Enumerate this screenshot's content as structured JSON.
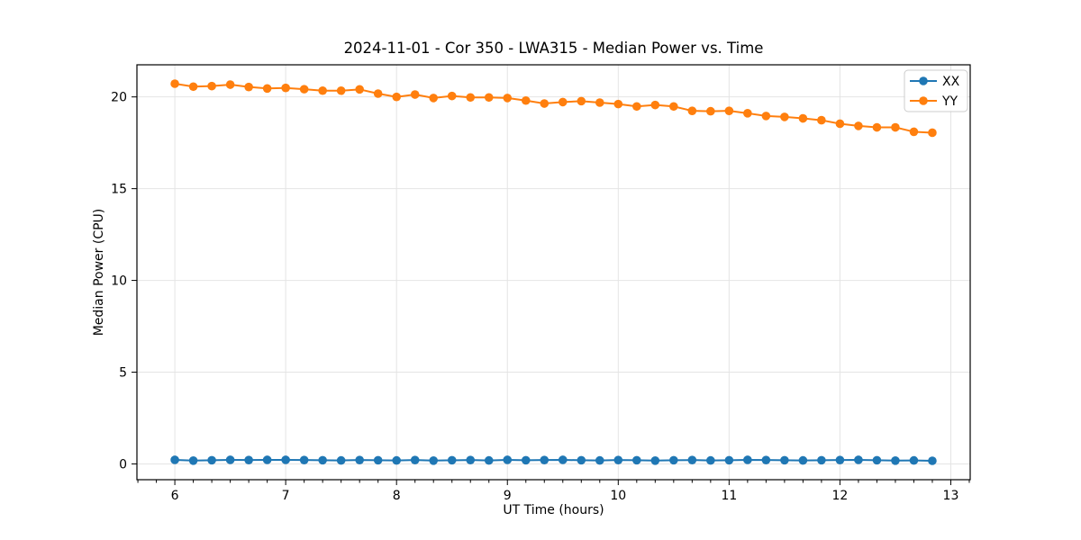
{
  "figure": {
    "background": "#ffffff",
    "frame_color": "#000000",
    "tick_color": "#000000"
  },
  "chart_data": {
    "type": "line",
    "title": "2024-11-01 - Cor 350 - LWA315 - Median Power vs. Time",
    "xlabel": "UT Time (hours)",
    "ylabel": "Median Power (CPU)",
    "xlim": [
      5.658,
      13.175
    ],
    "ylim": [
      -0.86,
      21.75
    ],
    "xticks": [
      6,
      7,
      8,
      9,
      10,
      11,
      12,
      13
    ],
    "yticks": [
      0,
      5,
      10,
      15,
      20
    ],
    "x_minor_tick_step": 0.166667,
    "grid": true,
    "grid_color": "#e4e4e4",
    "legend": {
      "position": "upper right",
      "border_color": "#cccccc",
      "background": "#ffffff"
    },
    "x": [
      6.0,
      6.1667,
      6.3333,
      6.5,
      6.6667,
      6.8333,
      7.0,
      7.1667,
      7.3333,
      7.5,
      7.6667,
      7.8333,
      8.0,
      8.1667,
      8.3333,
      8.5,
      8.6667,
      8.8333,
      9.0,
      9.1667,
      9.3333,
      9.5,
      9.6667,
      9.8333,
      10.0,
      10.1667,
      10.3333,
      10.5,
      10.6667,
      10.8333,
      11.0,
      11.1667,
      11.3333,
      11.5,
      11.6667,
      11.8333,
      12.0,
      12.1667,
      12.3333,
      12.5,
      12.6667,
      12.8333
    ],
    "series": [
      {
        "name": "XX",
        "color": "#1f77b4",
        "values": [
          0.22,
          0.18,
          0.2,
          0.22,
          0.21,
          0.22,
          0.22,
          0.21,
          0.2,
          0.19,
          0.21,
          0.2,
          0.19,
          0.21,
          0.18,
          0.2,
          0.21,
          0.19,
          0.22,
          0.2,
          0.21,
          0.22,
          0.2,
          0.19,
          0.21,
          0.2,
          0.18,
          0.2,
          0.21,
          0.19,
          0.2,
          0.22,
          0.21,
          0.2,
          0.19,
          0.2,
          0.21,
          0.22,
          0.2,
          0.18,
          0.19,
          0.17
        ]
      },
      {
        "name": "YY",
        "color": "#ff7f0e",
        "values": [
          20.72,
          20.56,
          20.59,
          20.67,
          20.54,
          20.46,
          20.49,
          20.42,
          20.34,
          20.34,
          20.41,
          20.18,
          20.0,
          20.13,
          19.94,
          20.05,
          19.97,
          19.97,
          19.94,
          19.8,
          19.64,
          19.72,
          19.77,
          19.69,
          19.61,
          19.48,
          19.56,
          19.48,
          19.24,
          19.22,
          19.24,
          19.11,
          18.96,
          18.91,
          18.83,
          18.73,
          18.54,
          18.42,
          18.34,
          18.34,
          18.1,
          18.05
        ]
      }
    ]
  }
}
